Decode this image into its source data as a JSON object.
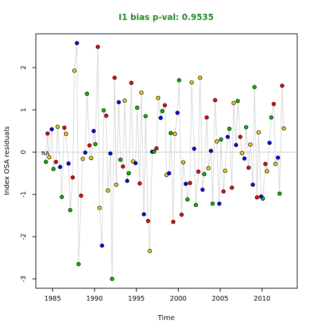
{
  "chart_data": {
    "type": "scatter",
    "title": "I1 bias p-val: 0.9535",
    "title_color": "#228B22",
    "xlabel": "Time",
    "ylabel": "Index OSA residuals",
    "xlim": [
      1983.0,
      2014.2
    ],
    "ylim": [
      -3.22,
      2.8
    ],
    "xticks": [
      1985,
      1990,
      1995,
      2000,
      2005,
      2010
    ],
    "yticks": [
      -3,
      -2,
      -1,
      0,
      1,
      2
    ],
    "reference_line": {
      "y": 0,
      "style": "dotted",
      "color": "#808080"
    },
    "annotation": "NA",
    "connector_color": "#D3D3D3",
    "point_colors": {
      "r": "#FF0000",
      "b": "#0000FF",
      "y": "#FFD700",
      "g": "#00C000"
    },
    "points": [
      {
        "x": 1984.2,
        "y": -0.23,
        "c": "g"
      },
      {
        "x": 1984.4,
        "y": 0.44,
        "c": "r"
      },
      {
        "x": 1984.6,
        "y": -0.12,
        "c": "y"
      },
      {
        "x": 1984.9,
        "y": 0.54,
        "c": "b"
      },
      {
        "x": 1985.1,
        "y": -0.4,
        "c": "g"
      },
      {
        "x": 1985.4,
        "y": -0.23,
        "c": "r"
      },
      {
        "x": 1985.6,
        "y": 0.6,
        "c": "y"
      },
      {
        "x": 1985.9,
        "y": -0.35,
        "c": "b"
      },
      {
        "x": 1986.1,
        "y": -1.06,
        "c": "g"
      },
      {
        "x": 1986.4,
        "y": 0.58,
        "c": "r"
      },
      {
        "x": 1986.6,
        "y": 0.43,
        "c": "y"
      },
      {
        "x": 1986.9,
        "y": -0.27,
        "c": "b"
      },
      {
        "x": 1987.1,
        "y": -1.37,
        "c": "g"
      },
      {
        "x": 1987.4,
        "y": -0.6,
        "c": "r"
      },
      {
        "x": 1987.6,
        "y": 1.93,
        "c": "y"
      },
      {
        "x": 1987.9,
        "y": 2.58,
        "c": "b"
      },
      {
        "x": 1988.1,
        "y": -2.65,
        "c": "g"
      },
      {
        "x": 1988.4,
        "y": -1.03,
        "c": "r"
      },
      {
        "x": 1988.6,
        "y": -0.16,
        "c": "y"
      },
      {
        "x": 1988.9,
        "y": -0.01,
        "c": "b"
      },
      {
        "x": 1989.1,
        "y": 1.38,
        "c": "g"
      },
      {
        "x": 1989.4,
        "y": 0.16,
        "c": "r"
      },
      {
        "x": 1989.6,
        "y": -0.14,
        "c": "y"
      },
      {
        "x": 1989.9,
        "y": 0.5,
        "c": "b"
      },
      {
        "x": 1990.1,
        "y": 0.19,
        "c": "g"
      },
      {
        "x": 1990.4,
        "y": 2.49,
        "c": "r"
      },
      {
        "x": 1990.6,
        "y": -1.32,
        "c": "y"
      },
      {
        "x": 1990.9,
        "y": -2.21,
        "c": "b"
      },
      {
        "x": 1991.1,
        "y": 0.99,
        "c": "g"
      },
      {
        "x": 1991.4,
        "y": 0.86,
        "c": "r"
      },
      {
        "x": 1991.6,
        "y": -0.91,
        "c": "y"
      },
      {
        "x": 1991.9,
        "y": -0.03,
        "c": "b"
      },
      {
        "x": 1992.1,
        "y": -3.0,
        "c": "g"
      },
      {
        "x": 1992.4,
        "y": 1.76,
        "c": "r"
      },
      {
        "x": 1992.6,
        "y": -0.77,
        "c": "y"
      },
      {
        "x": 1992.9,
        "y": 1.18,
        "c": "b"
      },
      {
        "x": 1993.1,
        "y": -0.18,
        "c": "g"
      },
      {
        "x": 1993.4,
        "y": -0.34,
        "c": "r"
      },
      {
        "x": 1993.6,
        "y": 1.22,
        "c": "y"
      },
      {
        "x": 1993.9,
        "y": -0.68,
        "c": "b"
      },
      {
        "x": 1994.1,
        "y": -0.5,
        "c": "g"
      },
      {
        "x": 1994.4,
        "y": 1.64,
        "c": "r"
      },
      {
        "x": 1994.6,
        "y": -0.22,
        "c": "y"
      },
      {
        "x": 1994.9,
        "y": -0.26,
        "c": "b"
      },
      {
        "x": 1995.1,
        "y": 1.05,
        "c": "g"
      },
      {
        "x": 1995.4,
        "y": -0.74,
        "c": "r"
      },
      {
        "x": 1995.6,
        "y": 1.41,
        "c": "y"
      },
      {
        "x": 1995.9,
        "y": -1.47,
        "c": "b"
      },
      {
        "x": 1996.1,
        "y": 0.85,
        "c": "g"
      },
      {
        "x": 1996.4,
        "y": -1.63,
        "c": "r"
      },
      {
        "x": 1996.6,
        "y": -2.34,
        "c": "y"
      },
      {
        "x": 1996.9,
        "y": 0.01,
        "c": "b"
      },
      {
        "x": 1997.1,
        "y": 0.01,
        "c": "g"
      },
      {
        "x": 1997.4,
        "y": 0.09,
        "c": "r"
      },
      {
        "x": 1997.6,
        "y": 1.28,
        "c": "y"
      },
      {
        "x": 1997.9,
        "y": 0.81,
        "c": "b"
      },
      {
        "x": 1998.1,
        "y": 0.97,
        "c": "g"
      },
      {
        "x": 1998.4,
        "y": 1.11,
        "c": "r"
      },
      {
        "x": 1998.6,
        "y": -0.54,
        "c": "y"
      },
      {
        "x": 1998.9,
        "y": -0.5,
        "c": "b"
      },
      {
        "x": 1999.1,
        "y": 0.45,
        "c": "g"
      },
      {
        "x": 1999.4,
        "y": -1.65,
        "c": "r"
      },
      {
        "x": 1999.6,
        "y": 0.43,
        "c": "y"
      },
      {
        "x": 1999.9,
        "y": 0.93,
        "c": "b"
      },
      {
        "x": 2000.1,
        "y": 1.7,
        "c": "g"
      },
      {
        "x": 2000.4,
        "y": -1.48,
        "c": "r"
      },
      {
        "x": 2000.6,
        "y": -0.24,
        "c": "y"
      },
      {
        "x": 2000.9,
        "y": -0.75,
        "c": "b"
      },
      {
        "x": 2001.1,
        "y": -1.12,
        "c": "g"
      },
      {
        "x": 2001.4,
        "y": -0.73,
        "c": "r"
      },
      {
        "x": 2001.6,
        "y": 1.65,
        "c": "y"
      },
      {
        "x": 2001.9,
        "y": 0.08,
        "c": "b"
      },
      {
        "x": 2002.1,
        "y": -1.25,
        "c": "g"
      },
      {
        "x": 2002.4,
        "y": -0.46,
        "c": "r"
      },
      {
        "x": 2002.6,
        "y": 1.76,
        "c": "y"
      },
      {
        "x": 2002.9,
        "y": -0.89,
        "c": "b"
      },
      {
        "x": 2003.1,
        "y": -0.52,
        "c": "g"
      },
      {
        "x": 2003.4,
        "y": 0.82,
        "c": "r"
      },
      {
        "x": 2003.6,
        "y": -0.38,
        "c": "y"
      },
      {
        "x": 2003.9,
        "y": 0.03,
        "c": "b"
      },
      {
        "x": 2004.1,
        "y": -1.22,
        "c": "g"
      },
      {
        "x": 2004.4,
        "y": 1.23,
        "c": "r"
      },
      {
        "x": 2004.6,
        "y": 0.25,
        "c": "y"
      },
      {
        "x": 2004.9,
        "y": -1.22,
        "c": "b"
      },
      {
        "x": 2005.1,
        "y": 0.3,
        "c": "g"
      },
      {
        "x": 2005.4,
        "y": -0.93,
        "c": "r"
      },
      {
        "x": 2005.6,
        "y": -0.44,
        "c": "y"
      },
      {
        "x": 2005.9,
        "y": 0.36,
        "c": "b"
      },
      {
        "x": 2006.1,
        "y": 0.55,
        "c": "g"
      },
      {
        "x": 2006.4,
        "y": -0.84,
        "c": "r"
      },
      {
        "x": 2006.6,
        "y": 1.16,
        "c": "y"
      },
      {
        "x": 2006.9,
        "y": 0.17,
        "c": "b"
      },
      {
        "x": 2007.1,
        "y": 1.21,
        "c": "g"
      },
      {
        "x": 2007.4,
        "y": 0.36,
        "c": "r"
      },
      {
        "x": 2007.6,
        "y": -0.02,
        "c": "y"
      },
      {
        "x": 2007.9,
        "y": -0.15,
        "c": "b"
      },
      {
        "x": 2008.1,
        "y": 0.59,
        "c": "g"
      },
      {
        "x": 2008.4,
        "y": -0.37,
        "c": "r"
      },
      {
        "x": 2008.6,
        "y": 0.18,
        "c": "y"
      },
      {
        "x": 2008.9,
        "y": -0.77,
        "c": "b"
      },
      {
        "x": 2009.1,
        "y": 1.54,
        "c": "g"
      },
      {
        "x": 2009.4,
        "y": -1.07,
        "c": "r"
      },
      {
        "x": 2009.6,
        "y": 0.47,
        "c": "y"
      },
      {
        "x": 2009.9,
        "y": -1.05,
        "c": "b"
      },
      {
        "x": 2010.1,
        "y": -1.1,
        "c": "g"
      },
      {
        "x": 2010.4,
        "y": -0.28,
        "c": "r"
      },
      {
        "x": 2010.6,
        "y": -0.45,
        "c": "y"
      },
      {
        "x": 2010.9,
        "y": 0.22,
        "c": "b"
      },
      {
        "x": 2011.1,
        "y": 0.82,
        "c": "g"
      },
      {
        "x": 2011.4,
        "y": 1.14,
        "c": "r"
      },
      {
        "x": 2011.6,
        "y": -0.28,
        "c": "y"
      },
      {
        "x": 2011.9,
        "y": -0.13,
        "c": "b"
      },
      {
        "x": 2012.1,
        "y": -0.98,
        "c": "g"
      },
      {
        "x": 2012.4,
        "y": 1.57,
        "c": "r"
      },
      {
        "x": 2012.6,
        "y": 0.56,
        "c": "y"
      }
    ]
  }
}
